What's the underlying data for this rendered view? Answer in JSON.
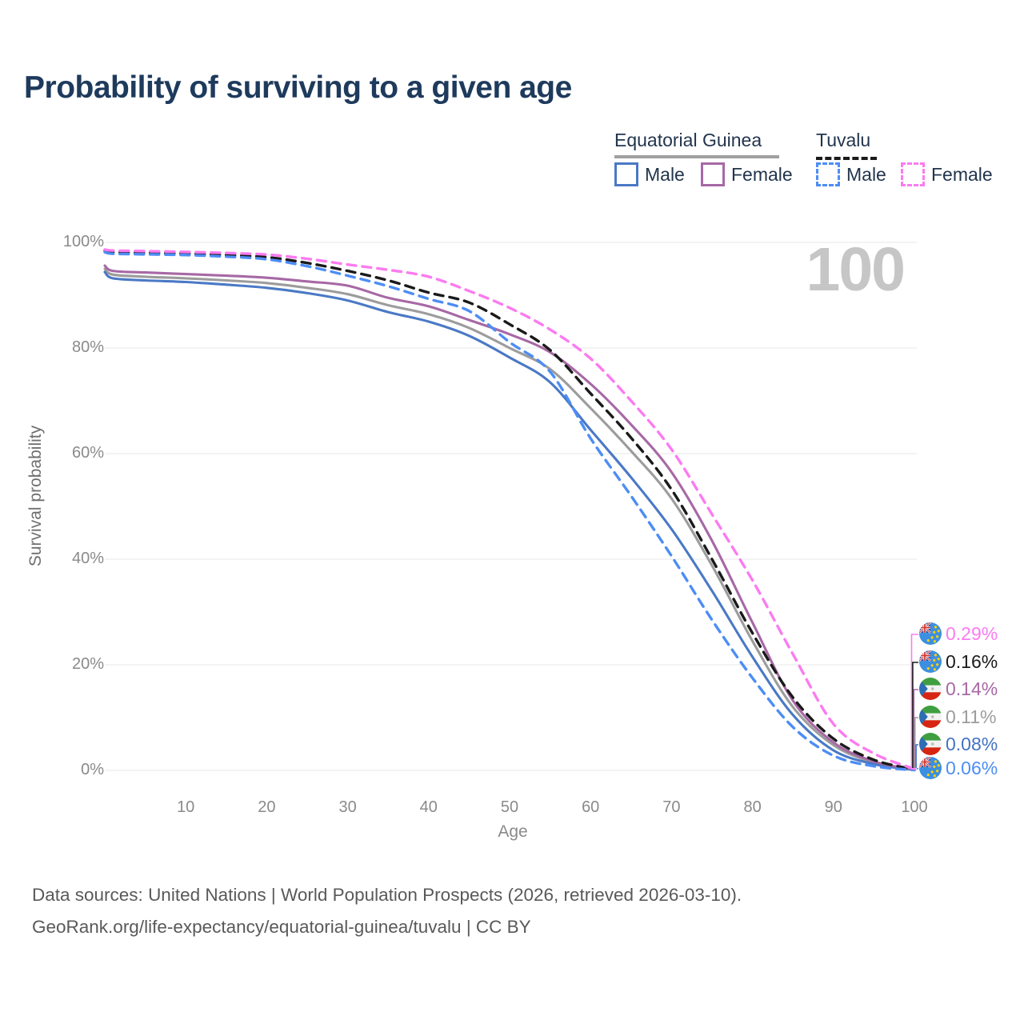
{
  "title": "Probability of surviving to a given age",
  "watermark_age": "100",
  "legend": {
    "group1": {
      "label": "Equatorial Guinea",
      "underline_color": "#a0a0a0",
      "male": {
        "label": "Male",
        "color": "#4a79c5"
      },
      "female": {
        "label": "Female",
        "color": "#a768a5"
      }
    },
    "group2": {
      "label": "Tuvalu",
      "underline_color": "#1a1a1a",
      "male": {
        "label": "Male",
        "color": "#4d8df5"
      },
      "female": {
        "label": "Female",
        "color": "#fb7bf0"
      }
    }
  },
  "chart_data": {
    "type": "line",
    "title": "Probability of surviving to a given age",
    "xlabel": "Age",
    "ylabel": "Survival probability",
    "xlim": [
      0,
      100
    ],
    "ylim": [
      0,
      100
    ],
    "grid": "horizontal",
    "legend_position": "top-right",
    "x_ticks": [
      10,
      20,
      30,
      40,
      50,
      60,
      70,
      80,
      90,
      100
    ],
    "y_ticks": [
      {
        "v": 0,
        "label": "0%"
      },
      {
        "v": 20,
        "label": "20%"
      },
      {
        "v": 40,
        "label": "40%"
      },
      {
        "v": 60,
        "label": "60%"
      },
      {
        "v": 80,
        "label": "80%"
      },
      {
        "v": 100,
        "label": "100%"
      }
    ],
    "x": [
      0,
      1,
      5,
      10,
      15,
      20,
      25,
      30,
      35,
      40,
      45,
      50,
      55,
      60,
      65,
      70,
      75,
      80,
      85,
      90,
      95,
      100
    ],
    "series": [
      {
        "name": "Equatorial Guinea (both sexes)",
        "country": "Equatorial Guinea",
        "sex": "total",
        "color": "#9c9c9c",
        "dashed": false,
        "values": [
          95.0,
          93.9,
          93.5,
          93.2,
          92.8,
          92.3,
          91.4,
          90.2,
          88.1,
          86.4,
          83.8,
          80.0,
          76.0,
          68.6,
          60.5,
          51.5,
          38.8,
          24.5,
          12.0,
          4.8,
          1.5,
          0.11
        ]
      },
      {
        "name": "Equatorial Guinea Male",
        "country": "Equatorial Guinea",
        "sex": "male",
        "color": "#4a79c5",
        "dashed": false,
        "values": [
          94.4,
          93.2,
          92.8,
          92.5,
          92.0,
          91.4,
          90.4,
          89.0,
          86.8,
          85.0,
          82.3,
          78.2,
          73.5,
          64.5,
          55.5,
          45.7,
          34.0,
          21.5,
          10.5,
          3.8,
          1.2,
          0.08
        ]
      },
      {
        "name": "Equatorial Guinea Female",
        "country": "Equatorial Guinea",
        "sex": "female",
        "color": "#a768a5",
        "dashed": false,
        "values": [
          95.6,
          94.6,
          94.3,
          94.0,
          93.7,
          93.3,
          92.6,
          91.8,
          89.5,
          87.9,
          85.3,
          82.6,
          79.2,
          73.2,
          65.5,
          56.5,
          43.5,
          28.0,
          13.2,
          5.3,
          1.7,
          0.14
        ]
      },
      {
        "name": "Tuvalu (both sexes)",
        "country": "Tuvalu",
        "sex": "total",
        "color": "#1a1a1a",
        "dashed": true,
        "values": [
          98.45,
          98.15,
          98.05,
          97.9,
          97.6,
          97.2,
          96.1,
          94.6,
          92.8,
          90.5,
          88.6,
          84.5,
          79.6,
          71.4,
          63.0,
          53.2,
          40.0,
          26.0,
          13.8,
          6.0,
          2.0,
          0.16
        ]
      },
      {
        "name": "Tuvalu Male",
        "country": "Tuvalu",
        "sex": "male",
        "color": "#4d8df5",
        "dashed": true,
        "values": [
          98.15,
          97.85,
          97.75,
          97.6,
          97.3,
          96.8,
          95.5,
          93.7,
          91.7,
          89.3,
          87.0,
          81.1,
          75.5,
          62.9,
          52.0,
          40.6,
          28.5,
          17.5,
          8.2,
          2.8,
          0.8,
          0.06
        ]
      },
      {
        "name": "Tuvalu Female",
        "country": "Tuvalu",
        "sex": "female",
        "color": "#fb7bf0",
        "dashed": true,
        "values": [
          98.65,
          98.45,
          98.35,
          98.2,
          98.0,
          97.7,
          96.9,
          95.8,
          94.8,
          93.5,
          90.8,
          87.6,
          83.5,
          78.0,
          70.0,
          60.8,
          48.5,
          36.0,
          22.0,
          8.8,
          3.2,
          0.29
        ]
      }
    ],
    "end_labels": [
      {
        "text": "0.29%",
        "color": "#fb7bf0",
        "country": "Tuvalu"
      },
      {
        "text": "0.16%",
        "color": "#1a1a1a",
        "country": "Tuvalu"
      },
      {
        "text": "0.14%",
        "color": "#a768a5",
        "country": "Equatorial Guinea"
      },
      {
        "text": "0.11%",
        "color": "#9c9c9c",
        "country": "Equatorial Guinea"
      },
      {
        "text": "0.08%",
        "color": "#4472c4",
        "country": "Equatorial Guinea"
      },
      {
        "text": "0.06%",
        "color": "#4d8df5",
        "country": "Tuvalu"
      }
    ]
  },
  "footer": {
    "line1": "Data sources: United Nations | World Population Prospects (2026, retrieved 2026-03-10).",
    "line2": "GeoRank.org/life-expectancy/equatorial-guinea/tuvalu | CC BY"
  }
}
